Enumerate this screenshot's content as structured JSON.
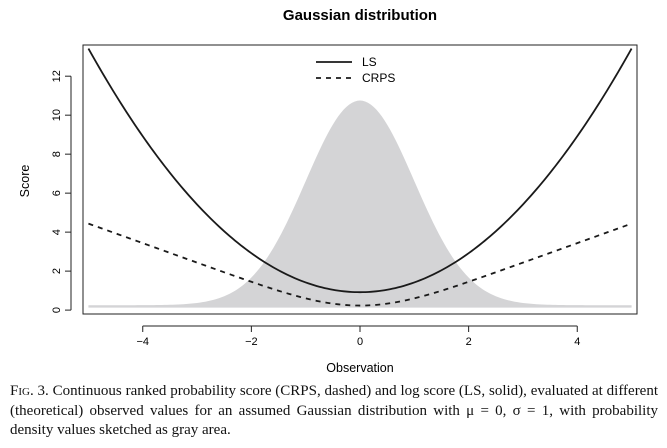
{
  "chart_data": {
    "type": "line",
    "title": "Gaussian distribution",
    "xlabel": "Observation",
    "ylabel": "Score",
    "xlim": [
      -5.1,
      5.1
    ],
    "ylim": [
      -0.2,
      13.6
    ],
    "x_ticks": [
      -4,
      -2,
      0,
      2,
      4
    ],
    "x_tick_labels": [
      "−4",
      "−2",
      "0",
      "2",
      "4"
    ],
    "y_ticks": [
      0,
      2,
      4,
      6,
      8,
      10,
      12
    ],
    "y_tick_labels": [
      "0",
      "2",
      "4",
      "6",
      "8",
      "10",
      "12"
    ],
    "grid": false,
    "legend_position": "top-center",
    "series": [
      {
        "name": "LS",
        "style": "solid",
        "color": "#1a1a1a",
        "x": [
          -5,
          -4,
          -3,
          -2,
          -1,
          0,
          1,
          2,
          3,
          4,
          5
        ],
        "y": [
          13.42,
          8.92,
          5.42,
          2.92,
          1.42,
          0.92,
          1.42,
          2.92,
          5.42,
          8.92,
          13.42
        ]
      },
      {
        "name": "CRPS",
        "style": "dashed",
        "color": "#1a1a1a",
        "x": [
          -5,
          -4,
          -3,
          -2,
          -1,
          0,
          1,
          2,
          3,
          4,
          5
        ],
        "y": [
          4.44,
          3.44,
          2.45,
          1.45,
          0.6,
          0.23,
          0.6,
          1.45,
          2.45,
          3.44,
          4.44
        ]
      }
    ],
    "density_area": {
      "color": "#d4d4d6",
      "mean": 0,
      "sd": 1,
      "baseline": 0.25,
      "peak": 10.75
    }
  },
  "caption": {
    "fig_label": "Fig. 3.",
    "text": "Continuous ranked probability score (CRPS, dashed) and log score (LS, solid), evaluated at different (theoretical) observed values for an assumed Gaussian distribution with μ = 0, σ = 1, with probability density values sketched as gray area."
  }
}
